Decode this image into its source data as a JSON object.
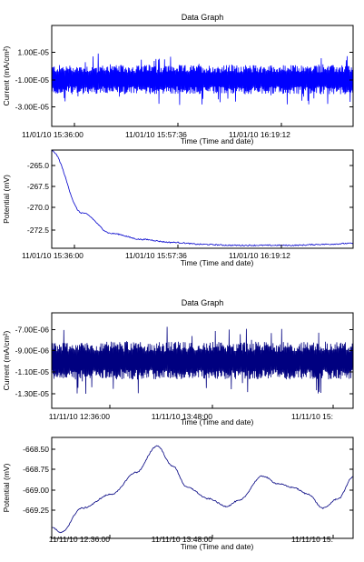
{
  "top_group": {
    "title": "Data Graph"
  },
  "bottom_group": {
    "title": "Data Graph"
  },
  "chart_data": [
    {
      "id": "current_nov01",
      "type": "line",
      "title": "",
      "xlabel": "Time (Time and date)",
      "ylabel": "Current (mA/cm²)",
      "x_ticks": [
        "11/01/10 15:36:00",
        "11/01/10 15:57:36",
        "11/01/10 16:19:12"
      ],
      "y_ticks": [
        "1.00E-05",
        "-1.00E-05",
        "-3.00E-05"
      ],
      "ylim": [
        -4.2e-05,
        2.7e-05
      ],
      "baseline": -1e-05,
      "series": [
        {
          "color": "#0000ff"
        }
      ]
    },
    {
      "id": "potential_nov01",
      "type": "line",
      "title": "",
      "xlabel": "Time (Time and date)",
      "ylabel": "Potential (mV)",
      "x_ticks": [
        "11/01/10 15:36:00",
        "11/01/10 15:57:36",
        "11/01/10 16:19:12"
      ],
      "y_ticks": [
        "-265.0",
        "-267.5",
        "-270.0",
        "-272.5"
      ],
      "ylim": [
        -274.2,
        -264.2
      ],
      "series": [
        {
          "color": "#0000cc",
          "x": [
            0,
            0.1,
            0.2,
            0.3,
            0.4,
            0.5,
            0.6,
            0.7,
            0.8,
            0.9,
            1.0
          ],
          "values": [
            -264.3,
            -270.6,
            -272.7,
            -273.3,
            -273.6,
            -273.8,
            -273.9,
            -273.9,
            -273.9,
            -273.8,
            -273.7
          ]
        }
      ]
    },
    {
      "id": "current_nov11",
      "type": "line",
      "title": "",
      "xlabel": "Time (Time and date)",
      "ylabel": "Current (mA/cm²)",
      "x_ticks": [
        "11/11/10 12:36:00",
        "11/11/10 13:48:00",
        "11/11/10 15:"
      ],
      "y_ticks": [
        "-7.00E-06",
        "-9.00E-06",
        "-1.10E-05",
        "-1.30E-05"
      ],
      "ylim": [
        -1.4e-05,
        -6e-06
      ],
      "baseline": -1e-05,
      "series": [
        {
          "color": "#000080"
        }
      ]
    },
    {
      "id": "potential_nov11",
      "type": "line",
      "title": "",
      "xlabel": "Time (Time and date)",
      "ylabel": "Potential (mV)",
      "x_ticks": [
        "11/11/10 12:36:00",
        "11/11/10 13:48:00",
        "11/11/10 15:"
      ],
      "y_ticks": [
        "-668.50",
        "-668.75",
        "-669.00",
        "-669.25"
      ],
      "ylim": [
        -669.42,
        -668.35
      ],
      "series": [
        {
          "color": "#000080",
          "x": [
            0,
            0.03,
            0.1,
            0.2,
            0.28,
            0.35,
            0.4,
            0.45,
            0.52,
            0.58,
            0.62,
            0.7,
            0.75,
            0.8,
            0.85,
            0.9,
            0.95,
            1.0
          ],
          "values": [
            -669.3,
            -669.36,
            -669.1,
            -668.95,
            -668.72,
            -668.44,
            -668.65,
            -668.88,
            -669.0,
            -669.08,
            -669.02,
            -668.76,
            -668.84,
            -668.88,
            -668.95,
            -669.1,
            -669.0,
            -668.77
          ]
        }
      ]
    }
  ]
}
